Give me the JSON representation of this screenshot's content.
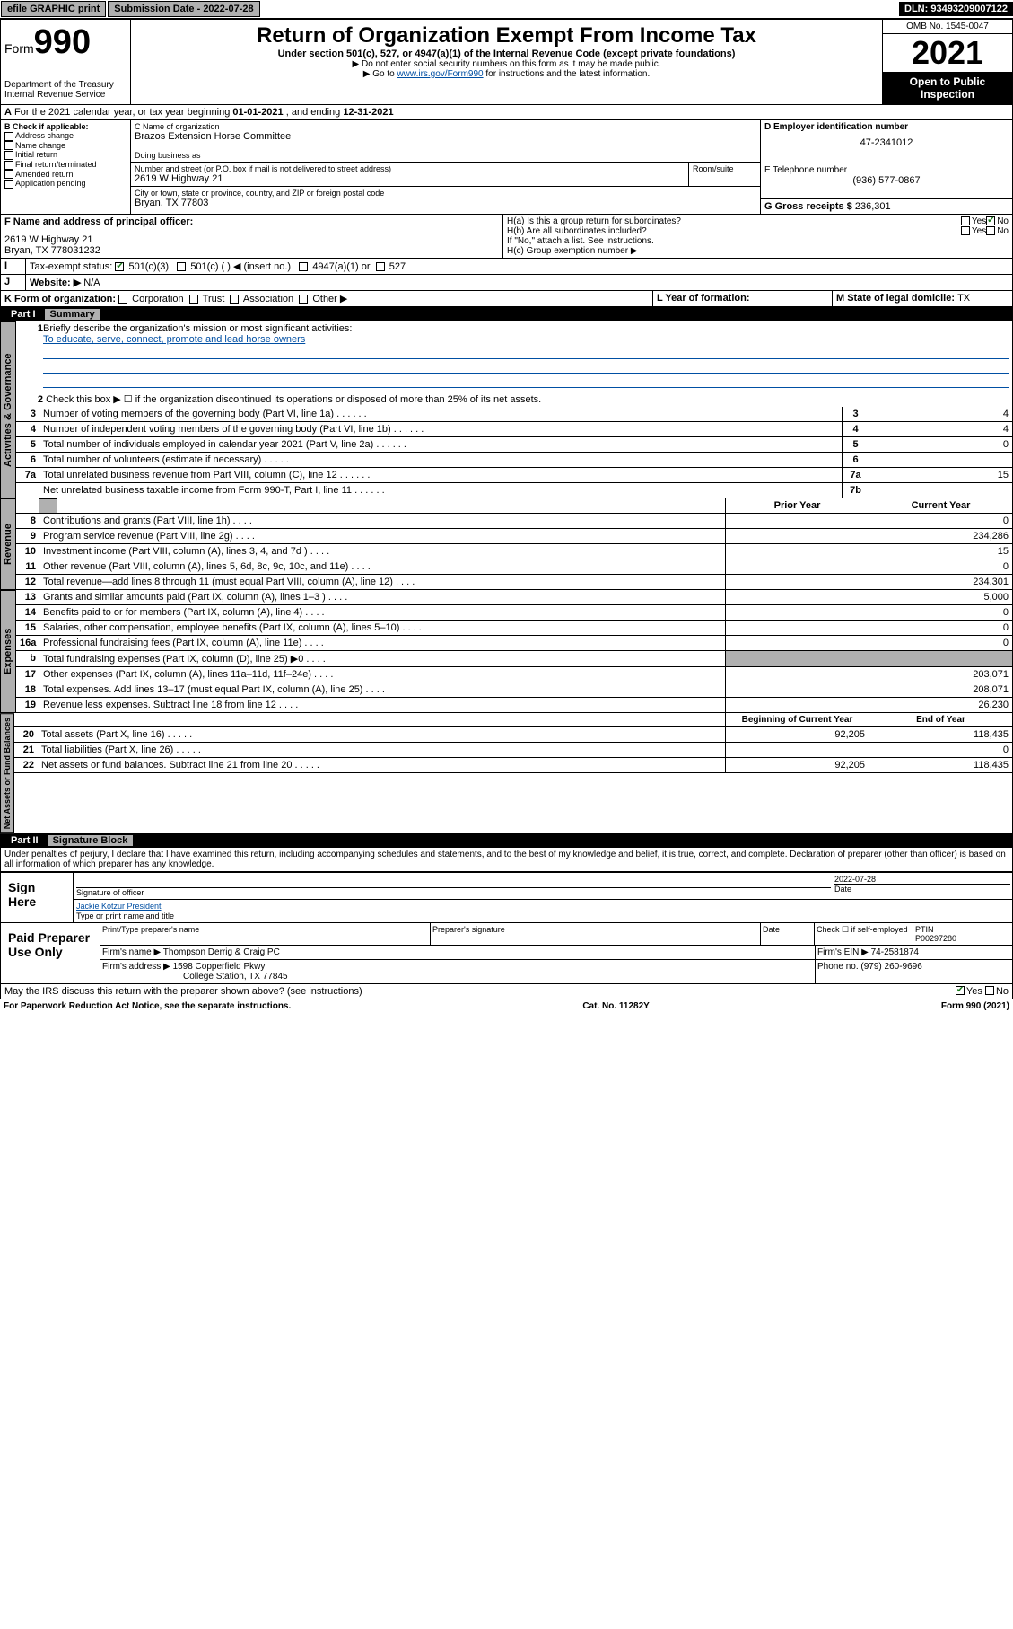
{
  "topbar": {
    "efile": "efile GRAPHIC print",
    "submission_label": "Submission Date - 2022-07-28",
    "dln": "DLN: 93493209007122"
  },
  "header": {
    "form_label": "Form",
    "form_number": "990",
    "dept": "Department of the Treasury",
    "irs": "Internal Revenue Service",
    "title": "Return of Organization Exempt From Income Tax",
    "subtitle": "Under section 501(c), 527, or 4947(a)(1) of the Internal Revenue Code (except private foundations)",
    "instr1": "▶ Do not enter social security numbers on this form as it may be made public.",
    "instr2_pre": "▶ Go to ",
    "instr2_link": "www.irs.gov/Form990",
    "instr2_post": " for instructions and the latest information.",
    "omb": "OMB No. 1545-0047",
    "year": "2021",
    "open": "Open to Public Inspection"
  },
  "line_a": {
    "text": "For the 2021 calendar year, or tax year beginning ",
    "begin": "01-01-2021",
    "mid": " , and ending ",
    "end": "12-31-2021"
  },
  "section_b": {
    "label": "B Check if applicable:",
    "items": [
      "Address change",
      "Name change",
      "Initial return",
      "Final return/terminated",
      "Amended return",
      "Application pending"
    ]
  },
  "section_c": {
    "label": "C Name of organization",
    "name": "Brazos Extension Horse Committee",
    "dba_label": "Doing business as",
    "addr_label": "Number and street (or P.O. box if mail is not delivered to street address)",
    "room_label": "Room/suite",
    "addr": "2619 W Highway 21",
    "city_label": "City or town, state or province, country, and ZIP or foreign postal code",
    "city": "Bryan, TX  77803"
  },
  "section_d": {
    "label": "D Employer identification number",
    "value": "47-2341012"
  },
  "section_e": {
    "label": "E Telephone number",
    "value": "(936) 577-0867"
  },
  "section_g": {
    "label": "G Gross receipts $ ",
    "value": "236,301"
  },
  "section_f": {
    "label": "F Name and address of principal officer:",
    "addr1": "2619 W Highway 21",
    "addr2": "Bryan, TX  778031232"
  },
  "section_h": {
    "ha": "H(a)  Is this a group return for subordinates?",
    "hb": "H(b)  Are all subordinates included?",
    "hb_note": "If \"No,\" attach a list. See instructions.",
    "hc": "H(c)  Group exemption number ▶",
    "yes": "Yes",
    "no": "No"
  },
  "section_i": {
    "label": "Tax-exempt status:",
    "opts": [
      "501(c)(3)",
      "501(c) (  ) ◀ (insert no.)",
      "4947(a)(1) or",
      "527"
    ]
  },
  "section_j": {
    "label": "Website: ▶",
    "value": "N/A"
  },
  "section_k": {
    "label": "K Form of organization:",
    "opts": [
      "Corporation",
      "Trust",
      "Association",
      "Other ▶"
    ]
  },
  "section_l": {
    "label": "L Year of formation:"
  },
  "section_m": {
    "label": "M State of legal domicile: ",
    "value": "TX"
  },
  "part1": {
    "label": "Part I",
    "title": "Summary",
    "line1_label": "Briefly describe the organization's mission or most significant activities:",
    "mission": "To educate, serve, connect, promote and lead horse owners",
    "line2": "Check this box ▶ ☐  if the organization discontinued its operations or disposed of more than 25% of its net assets.",
    "lines_gov": [
      {
        "n": "3",
        "desc": "Number of voting members of the governing body (Part VI, line 1a)",
        "box": "3",
        "val": "4"
      },
      {
        "n": "4",
        "desc": "Number of independent voting members of the governing body (Part VI, line 1b)",
        "box": "4",
        "val": "4"
      },
      {
        "n": "5",
        "desc": "Total number of individuals employed in calendar year 2021 (Part V, line 2a)",
        "box": "5",
        "val": "0"
      },
      {
        "n": "6",
        "desc": "Total number of volunteers (estimate if necessary)",
        "box": "6",
        "val": ""
      },
      {
        "n": "7a",
        "desc": "Total unrelated business revenue from Part VIII, column (C), line 12",
        "box": "7a",
        "val": "15"
      },
      {
        "n": "",
        "desc": "Net unrelated business taxable income from Form 990-T, Part I, line 11",
        "box": "7b",
        "val": ""
      }
    ],
    "col_headers": {
      "prior": "Prior Year",
      "current": "Current Year"
    },
    "lines_rev": [
      {
        "n": "8",
        "desc": "Contributions and grants (Part VIII, line 1h)",
        "prior": "",
        "cur": "0"
      },
      {
        "n": "9",
        "desc": "Program service revenue (Part VIII, line 2g)",
        "prior": "",
        "cur": "234,286"
      },
      {
        "n": "10",
        "desc": "Investment income (Part VIII, column (A), lines 3, 4, and 7d )",
        "prior": "",
        "cur": "15"
      },
      {
        "n": "11",
        "desc": "Other revenue (Part VIII, column (A), lines 5, 6d, 8c, 9c, 10c, and 11e)",
        "prior": "",
        "cur": "0"
      },
      {
        "n": "12",
        "desc": "Total revenue—add lines 8 through 11 (must equal Part VIII, column (A), line 12)",
        "prior": "",
        "cur": "234,301"
      }
    ],
    "lines_exp": [
      {
        "n": "13",
        "desc": "Grants and similar amounts paid (Part IX, column (A), lines 1–3 )",
        "prior": "",
        "cur": "5,000"
      },
      {
        "n": "14",
        "desc": "Benefits paid to or for members (Part IX, column (A), line 4)",
        "prior": "",
        "cur": "0"
      },
      {
        "n": "15",
        "desc": "Salaries, other compensation, employee benefits (Part IX, column (A), lines 5–10)",
        "prior": "",
        "cur": "0"
      },
      {
        "n": "16a",
        "desc": "Professional fundraising fees (Part IX, column (A), line 11e)",
        "prior": "",
        "cur": "0"
      },
      {
        "n": "b",
        "desc": "Total fundraising expenses (Part IX, column (D), line 25) ▶0",
        "prior": "SHADE",
        "cur": "SHADE"
      },
      {
        "n": "17",
        "desc": "Other expenses (Part IX, column (A), lines 11a–11d, 11f–24e)",
        "prior": "",
        "cur": "203,071"
      },
      {
        "n": "18",
        "desc": "Total expenses. Add lines 13–17 (must equal Part IX, column (A), line 25)",
        "prior": "",
        "cur": "208,071"
      },
      {
        "n": "19",
        "desc": "Revenue less expenses. Subtract line 18 from line 12",
        "prior": "",
        "cur": "26,230"
      }
    ],
    "col_headers2": {
      "begin": "Beginning of Current Year",
      "end": "End of Year"
    },
    "lines_net": [
      {
        "n": "20",
        "desc": "Total assets (Part X, line 16)",
        "prior": "92,205",
        "cur": "118,435"
      },
      {
        "n": "21",
        "desc": "Total liabilities (Part X, line 26)",
        "prior": "",
        "cur": "0"
      },
      {
        "n": "22",
        "desc": "Net assets or fund balances. Subtract line 21 from line 20",
        "prior": "92,205",
        "cur": "118,435"
      }
    ],
    "vtabs": {
      "gov": "Activities & Governance",
      "rev": "Revenue",
      "exp": "Expenses",
      "net": "Net Assets or Fund Balances"
    }
  },
  "part2": {
    "label": "Part II",
    "title": "Signature Block",
    "decl": "Under penalties of perjury, I declare that I have examined this return, including accompanying schedules and statements, and to the best of my knowledge and belief, it is true, correct, and complete. Declaration of preparer (other than officer) is based on all information of which preparer has any knowledge.",
    "sign_here": "Sign Here",
    "sig_officer": "Signature of officer",
    "date": "Date",
    "sig_date": "2022-07-28",
    "officer_name": "Jackie Kotzur President",
    "type_name": "Type or print name and title",
    "paid": "Paid Preparer Use Only",
    "prep_name_label": "Print/Type preparer's name",
    "prep_sig_label": "Preparer's signature",
    "date_label": "Date",
    "check_if": "Check ☐ if self-employed",
    "ptin_label": "PTIN",
    "ptin": "P00297280",
    "firm_name_label": "Firm's name    ▶",
    "firm_name": "Thompson Derrig & Craig PC",
    "firm_ein_label": "Firm's EIN ▶",
    "firm_ein": "74-2581874",
    "firm_addr_label": "Firm's address ▶",
    "firm_addr1": "1598 Copperfield Pkwy",
    "firm_addr2": "College Station, TX  77845",
    "phone_label": "Phone no.",
    "phone": "(979) 260-9696",
    "may_irs": "May the IRS discuss this return with the preparer shown above? (see instructions)"
  },
  "footer": {
    "pra": "For Paperwork Reduction Act Notice, see the separate instructions.",
    "cat": "Cat. No. 11282Y",
    "form": "Form 990 (2021)"
  }
}
